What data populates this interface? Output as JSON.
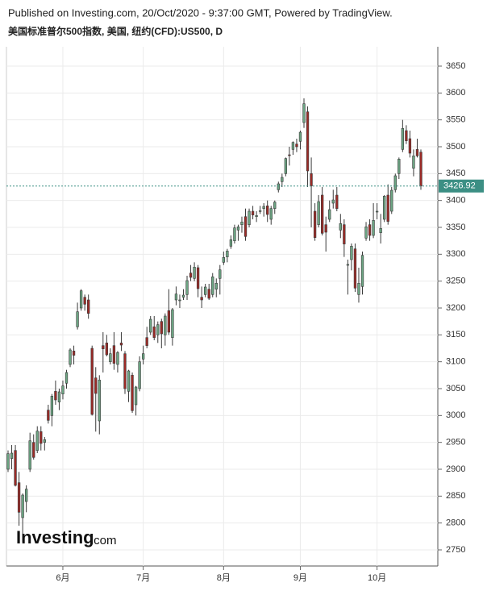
{
  "chart_data": {
    "type": "candlestick",
    "subtitle": "Published on Investing.com, 20/Oct/2020 - 9:37:00 GMT, Powered by TradingView.",
    "title": "美国标准普尔500指数, 美国, 纽约(CFD):US500, D",
    "logo": {
      "name": "Investing",
      "suffix": ".com"
    },
    "up_color": "#6ca583",
    "down_color": "#9c2b27",
    "grid": true,
    "last_price": 3426.92,
    "last_price_color": "#3c8f84",
    "ylim": [
      2720,
      3686
    ],
    "yticks": [
      2750,
      2800,
      2850,
      2900,
      2950,
      3000,
      3050,
      3100,
      3150,
      3200,
      3250,
      3300,
      3350,
      3400,
      3450,
      3500,
      3550,
      3600,
      3650
    ],
    "categories": [
      null,
      null,
      null,
      null,
      null,
      null,
      null,
      null,
      null,
      null,
      null,
      null,
      null,
      null,
      null,
      "6月",
      null,
      null,
      null,
      null,
      null,
      null,
      null,
      null,
      null,
      null,
      null,
      null,
      null,
      null,
      null,
      null,
      null,
      null,
      null,
      null,
      null,
      "7月",
      null,
      null,
      null,
      null,
      null,
      null,
      null,
      null,
      null,
      null,
      null,
      null,
      null,
      null,
      null,
      null,
      null,
      null,
      null,
      null,
      null,
      "8月",
      null,
      null,
      null,
      null,
      null,
      null,
      null,
      null,
      null,
      null,
      null,
      null,
      null,
      null,
      null,
      null,
      null,
      null,
      null,
      null,
      "9月",
      null,
      null,
      null,
      null,
      null,
      null,
      null,
      null,
      null,
      null,
      null,
      null,
      null,
      null,
      null,
      null,
      null,
      null,
      null,
      null,
      "10月",
      null,
      null,
      null,
      null,
      null,
      null,
      null,
      null,
      null,
      null,
      null,
      null
    ],
    "open": [
      2900,
      2920,
      2935,
      2875,
      2810,
      2840,
      2900,
      2950,
      2935,
      2970,
      2950,
      3010,
      3000,
      3045,
      3025,
      3040,
      3060,
      3095,
      3120,
      3165,
      3200,
      3220,
      3215,
      3125,
      3070,
      2990,
      3130,
      3135,
      3100,
      3130,
      3095,
      3135,
      3115,
      3045,
      3075,
      3020,
      3050,
      3105,
      3145,
      3155,
      3165,
      3150,
      3175,
      3150,
      3195,
      3145,
      3215,
      3215,
      3220,
      3225,
      3265,
      3255,
      3275,
      3220,
      3225,
      3235,
      3225,
      3235,
      3255,
      3285,
      3295,
      3315,
      3325,
      3345,
      3355,
      3370,
      3355,
      3380,
      3370,
      3380,
      3385,
      3390,
      3365,
      3385,
      3420,
      3435,
      3450,
      3485,
      3495,
      3505,
      3510,
      3545,
      3565,
      3450,
      3380,
      3355,
      3410,
      3355,
      3365,
      3395,
      3410,
      3345,
      3355,
      3280,
      3290,
      3310,
      3225,
      3240,
      3330,
      3355,
      3335,
      3380,
      3340,
      3365,
      3410,
      3380,
      3420,
      3450,
      3495,
      3530,
      3515,
      3460,
      3495,
      3490
    ],
    "high": [
      2935,
      2945,
      2945,
      2895,
      2855,
      2870,
      2968,
      2965,
      2980,
      2980,
      2960,
      3020,
      3040,
      3065,
      3050,
      3065,
      3085,
      3125,
      3130,
      3210,
      3235,
      3225,
      3225,
      3130,
      3090,
      3075,
      3155,
      3150,
      3125,
      3155,
      3120,
      3155,
      3120,
      3085,
      3080,
      3055,
      3110,
      3130,
      3165,
      3185,
      3185,
      3175,
      3180,
      3190,
      3235,
      3200,
      3240,
      3225,
      3235,
      3260,
      3280,
      3285,
      3280,
      3240,
      3245,
      3245,
      3265,
      3255,
      3280,
      3305,
      3310,
      3335,
      3355,
      3355,
      3370,
      3385,
      3385,
      3390,
      3380,
      3390,
      3395,
      3400,
      3390,
      3400,
      3435,
      3450,
      3480,
      3500,
      3510,
      3515,
      3530,
      3590,
      3575,
      3480,
      3395,
      3410,
      3425,
      3370,
      3400,
      3420,
      3425,
      3375,
      3365,
      3290,
      3320,
      3320,
      3275,
      3305,
      3360,
      3365,
      3395,
      3395,
      3375,
      3410,
      3430,
      3425,
      3450,
      3480,
      3550,
      3540,
      3530,
      3495,
      3515,
      3495
    ],
    "low": [
      2895,
      2900,
      2868,
      2795,
      2765,
      2820,
      2895,
      2918,
      2930,
      2935,
      2935,
      2985,
      2980,
      3020,
      3010,
      3030,
      3050,
      3090,
      3095,
      3160,
      3195,
      3195,
      3180,
      3000,
      2970,
      2965,
      3080,
      3110,
      3095,
      3085,
      3080,
      3120,
      3040,
      3025,
      3005,
      3000,
      3045,
      3095,
      3125,
      3150,
      3140,
      3135,
      3125,
      3130,
      3150,
      3130,
      3205,
      3200,
      3215,
      3215,
      3250,
      3250,
      3220,
      3200,
      3220,
      3215,
      3220,
      3220,
      3225,
      3280,
      3285,
      3310,
      3320,
      3325,
      3340,
      3325,
      3350,
      3365,
      3360,
      3375,
      3370,
      3360,
      3355,
      3375,
      3415,
      3425,
      3445,
      3465,
      3485,
      3490,
      3495,
      3535,
      3425,
      3350,
      3325,
      3350,
      3335,
      3305,
      3360,
      3385,
      3380,
      3330,
      3295,
      3225,
      3270,
      3230,
      3210,
      3225,
      3325,
      3325,
      3330,
      3365,
      3320,
      3360,
      3355,
      3375,
      3415,
      3440,
      3490,
      3505,
      3480,
      3445,
      3480,
      3420
    ],
    "close": [
      2929,
      2930,
      2870,
      2820,
      2852,
      2863,
      2953,
      2922,
      2971,
      2948,
      2955,
      2991,
      3036,
      3029,
      3044,
      3055,
      3080,
      3122,
      3112,
      3193,
      3232,
      3207,
      3190,
      3002,
      3041,
      3066,
      3124,
      3113,
      3115,
      3097,
      3117,
      3131,
      3050,
      3083,
      3009,
      3053,
      3100,
      3115,
      3130,
      3179,
      3145,
      3169,
      3152,
      3185,
      3155,
      3197,
      3226,
      3215,
      3224,
      3251,
      3257,
      3276,
      3236,
      3215,
      3239,
      3218,
      3258,
      3246,
      3271,
      3294,
      3306,
      3327,
      3349,
      3351,
      3360,
      3333,
      3380,
      3373,
      3372,
      3381,
      3389,
      3374,
      3385,
      3397,
      3431,
      3443,
      3478,
      3484,
      3508,
      3500,
      3527,
      3580,
      3455,
      3427,
      3331,
      3398,
      3339,
      3341,
      3383,
      3401,
      3385,
      3357,
      3319,
      3281,
      3315,
      3237,
      3246,
      3298,
      3351,
      3335,
      3363,
      3380,
      3348,
      3408,
      3361,
      3419,
      3446,
      3477,
      3534,
      3511,
      3488,
      3483,
      3483,
      3426.92
    ]
  }
}
